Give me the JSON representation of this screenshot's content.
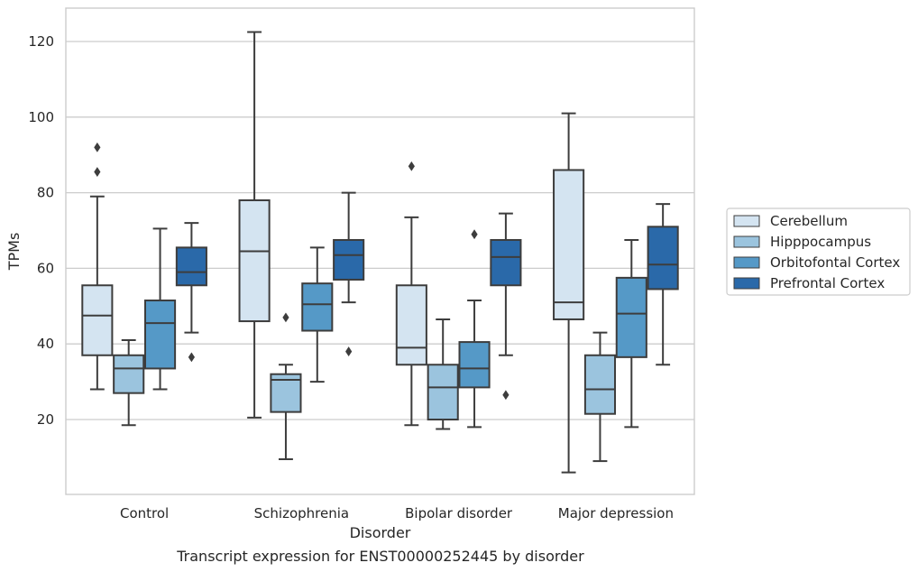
{
  "chart_data": {
    "type": "box",
    "title": "",
    "caption": "Transcript expression for ENST00000252445 by disorder",
    "xlabel": "Disorder",
    "ylabel": "TPMs",
    "ylim": [
      0,
      128
    ],
    "yticks": [
      20,
      40,
      60,
      80,
      100,
      120
    ],
    "grid": "horizontal",
    "legend_position": "right",
    "categories": [
      "Control",
      "Schizophrenia",
      "Bipolar disorder",
      "Major depression"
    ],
    "series": [
      {
        "name": "Cerebellum",
        "color": "#d4e4f1",
        "boxes": [
          {
            "whisker_low": 28,
            "q1": 37,
            "median": 47.5,
            "q3": 55.5,
            "whisker_high": 79,
            "outliers": [
              85.5,
              92
            ]
          },
          {
            "whisker_low": 20.5,
            "q1": 46,
            "median": 64.5,
            "q3": 78,
            "whisker_high": 122.5,
            "outliers": []
          },
          {
            "whisker_low": 18.5,
            "q1": 34.5,
            "median": 39,
            "q3": 55.5,
            "whisker_high": 73.5,
            "outliers": [
              87
            ]
          },
          {
            "whisker_low": 6,
            "q1": 46.5,
            "median": 51,
            "q3": 86,
            "whisker_high": 101,
            "outliers": []
          }
        ]
      },
      {
        "name": "Hipppocampus",
        "color": "#9bc4de",
        "boxes": [
          {
            "whisker_low": 18.5,
            "q1": 27,
            "median": 33.5,
            "q3": 37,
            "whisker_high": 41,
            "outliers": []
          },
          {
            "whisker_low": 9.5,
            "q1": 22,
            "median": 30.5,
            "q3": 32,
            "whisker_high": 34.5,
            "outliers": [
              47
            ]
          },
          {
            "whisker_low": 17.5,
            "q1": 20,
            "median": 28.5,
            "q3": 34.5,
            "whisker_high": 46.5,
            "outliers": []
          },
          {
            "whisker_low": 9,
            "q1": 21.5,
            "median": 28,
            "q3": 37,
            "whisker_high": 43,
            "outliers": []
          }
        ]
      },
      {
        "name": "Orbitofontal Cortex",
        "color": "#5599c7",
        "boxes": [
          {
            "whisker_low": 28,
            "q1": 33.5,
            "median": 45.5,
            "q3": 51.5,
            "whisker_high": 70.5,
            "outliers": []
          },
          {
            "whisker_low": 30,
            "q1": 43.5,
            "median": 50.5,
            "q3": 56,
            "whisker_high": 65.5,
            "outliers": []
          },
          {
            "whisker_low": 18,
            "q1": 28.5,
            "median": 33.5,
            "q3": 40.5,
            "whisker_high": 51.5,
            "outliers": [
              69
            ]
          },
          {
            "whisker_low": 18,
            "q1": 36.5,
            "median": 48,
            "q3": 57.5,
            "whisker_high": 67.5,
            "outliers": []
          }
        ]
      },
      {
        "name": "Prefrontal Cortex",
        "color": "#2a69a9",
        "boxes": [
          {
            "whisker_low": 43,
            "q1": 55.5,
            "median": 59,
            "q3": 65.5,
            "whisker_high": 72,
            "outliers": [
              36.5
            ]
          },
          {
            "whisker_low": 51,
            "q1": 57,
            "median": 63.5,
            "q3": 67.5,
            "whisker_high": 80,
            "outliers": [
              38
            ]
          },
          {
            "whisker_low": 37,
            "q1": 55.5,
            "median": 63,
            "q3": 67.5,
            "whisker_high": 74.5,
            "outliers": [
              26.5
            ]
          },
          {
            "whisker_low": 34.5,
            "q1": 54.5,
            "median": 61,
            "q3": 71,
            "whisker_high": 77,
            "outliers": []
          }
        ]
      }
    ]
  }
}
